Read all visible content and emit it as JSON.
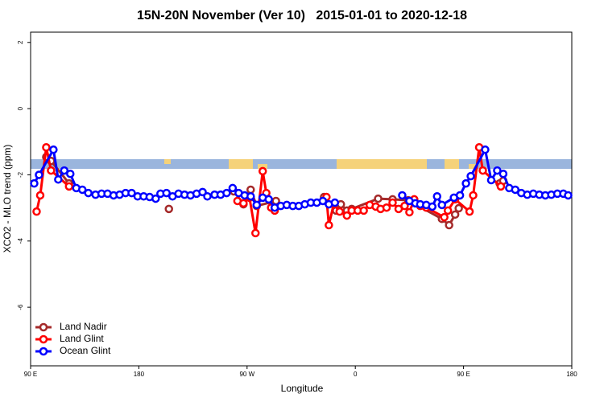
{
  "chart_data": {
    "type": "line",
    "title": "15N-20N November (Ver 10)   2015-01-01 to 2020-12-18",
    "x_label": "Longitude",
    "y_label": "XCO2 - MLO trend (ppm)",
    "xlim": [
      90,
      540
    ],
    "xticks": [
      {
        "value": 90,
        "label": "90 E"
      },
      180,
      {
        "value": 270,
        "label": "90 W"
      },
      {
        "value": 360,
        "label": "0"
      },
      {
        "value": 450,
        "label": "90 E"
      },
      {
        "value": 540,
        "label": "180"
      }
    ],
    "ylim": [
      -7.77,
      2.31
    ],
    "yticks": [
      -6,
      -4,
      -2,
      0,
      2
    ],
    "legend": "bottom-left",
    "series": [
      {
        "name": "Land Nadir",
        "color": "#a52a2a",
        "x": [
          103,
          107,
          122,
          null,
          205,
          null,
          259,
          267,
          273,
          278,
          294,
          null,
          334,
          344,
          348,
          353,
          357,
          379,
          391,
          404,
          432,
          438,
          443,
          446,
          null,
          480,
          483
        ],
        "values": [
          -1.46,
          -1.58,
          -2.26,
          null,
          -3.03,
          null,
          -2.5,
          -2.89,
          -2.45,
          -2.94,
          -2.79,
          null,
          -2.67,
          -3.08,
          -2.89,
          -3.08,
          -3.03,
          -2.72,
          -2.74,
          -2.77,
          -3.33,
          -3.52,
          -3.2,
          -3.01,
          null,
          -2.26,
          -2.18
        ]
      },
      {
        "name": "Land Glint",
        "color": "#ff0000",
        "x": [
          95,
          98,
          103,
          107,
          122,
          null,
          262,
          267,
          272,
          277,
          283,
          286,
          290,
          293,
          null,
          336,
          338,
          342,
          347,
          353,
          357,
          362,
          367,
          372,
          377,
          381,
          386,
          391,
          396,
          401,
          405,
          409,
          414,
          419,
          434,
          437,
          443,
          455,
          458,
          463,
          466,
          481
        ],
        "values": [
          -3.11,
          -2.62,
          -1.17,
          -1.87,
          -2.35,
          null,
          -2.79,
          -2.86,
          -2.69,
          -3.76,
          -1.89,
          -2.55,
          -2.99,
          -3.08,
          null,
          -2.67,
          -3.52,
          -2.89,
          -3.11,
          -3.23,
          -3.08,
          -3.08,
          -3.08,
          -2.91,
          -2.96,
          -3.03,
          -2.99,
          -2.84,
          -3.03,
          -2.94,
          -3.13,
          -2.74,
          -2.94,
          -2.99,
          -3.28,
          -3.08,
          -2.74,
          -3.11,
          -2.62,
          -1.17,
          -1.87,
          -2.35
        ]
      },
      {
        "name": "Ocean Glint",
        "color": "#0000ff",
        "x": [
          93,
          97,
          109,
          113,
          118,
          123,
          128,
          133,
          138,
          144,
          149,
          154,
          159,
          164,
          169,
          174,
          179,
          184,
          189,
          194,
          198,
          203,
          208,
          213,
          218,
          223,
          228,
          233,
          237,
          243,
          248,
          253,
          258,
          263,
          268,
          273,
          278,
          283,
          288,
          293,
          298,
          303,
          308,
          313,
          318,
          323,
          328,
          333,
          338,
          343,
          null,
          399,
          405,
          410,
          414,
          419,
          424,
          428,
          432,
          442,
          447,
          452,
          456,
          468,
          473,
          478,
          483,
          488,
          493,
          498,
          503,
          508,
          513,
          518,
          523,
          528,
          533,
          537
        ],
        "values": [
          -2.26,
          -2.0,
          -1.24,
          -2.14,
          -1.87,
          -1.97,
          -2.4,
          -2.45,
          -2.55,
          -2.6,
          -2.57,
          -2.57,
          -2.62,
          -2.6,
          -2.55,
          -2.55,
          -2.65,
          -2.65,
          -2.67,
          -2.72,
          -2.57,
          -2.55,
          -2.65,
          -2.57,
          -2.6,
          -2.62,
          -2.57,
          -2.52,
          -2.65,
          -2.6,
          -2.6,
          -2.55,
          -2.4,
          -2.55,
          -2.62,
          -2.65,
          -2.91,
          -2.69,
          -2.74,
          -2.99,
          -2.94,
          -2.91,
          -2.94,
          -2.94,
          -2.89,
          -2.84,
          -2.84,
          -2.79,
          -2.89,
          -2.84,
          null,
          -2.62,
          -2.79,
          -2.86,
          -2.89,
          -2.91,
          -2.96,
          -2.65,
          -2.91,
          -2.69,
          -2.62,
          -2.26,
          -2.04,
          -1.24,
          -2.16,
          -1.87,
          -1.97,
          -2.4,
          -2.45,
          -2.55,
          -2.6,
          -2.57,
          -2.6,
          -2.62,
          -2.6,
          -2.57,
          -2.57,
          -2.62
        ]
      }
    ]
  }
}
